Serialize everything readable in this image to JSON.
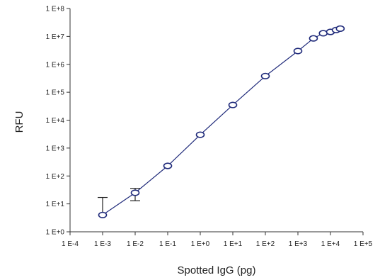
{
  "chart_data": {
    "type": "scatter",
    "title": "",
    "xlabel": "Spotted IgG (pg)",
    "ylabel": "RFU",
    "x_scale": "log",
    "y_scale": "log",
    "xlim": [
      0.0001,
      100000
    ],
    "ylim": [
      1,
      100000000
    ],
    "x_tick_values": [
      0.0001,
      0.001,
      0.01,
      0.1,
      1,
      10,
      100,
      1000,
      10000,
      100000
    ],
    "x_tick_labels": [
      "1 E-4",
      "1 E-3",
      "1 E-2",
      "1 E-1",
      "1 E+0",
      "1 E+1",
      "1 E+2",
      "1 E+3",
      "1 E+4",
      "1 E+5"
    ],
    "y_tick_values": [
      1,
      10,
      100,
      1000,
      10000,
      100000,
      1000000,
      10000000,
      100000000
    ],
    "y_tick_labels": [
      "1 E+0",
      "1 E+1",
      "1 E+2",
      "1 E+3",
      "1 E+4",
      "1 E+5",
      "1 E+6",
      "1 E+7",
      "1 E+8"
    ],
    "grid": false,
    "legend": "none",
    "color": "#1f2a7a",
    "series": [
      {
        "x": [
          0.001,
          0.01,
          0.1,
          1,
          10,
          100,
          1000,
          3000,
          6000,
          10000,
          15000,
          20000
        ],
        "y": [
          4,
          25,
          230,
          3000,
          35000,
          380000,
          3000000,
          8500000,
          13000000,
          14500000,
          17000000,
          19000000
        ],
        "y_err_low": [
          0,
          13,
          0,
          0,
          0,
          0,
          0,
          0,
          0,
          0,
          0,
          0
        ],
        "y_err_high": [
          17,
          36,
          0,
          0,
          0,
          0,
          0,
          0,
          0,
          0,
          0,
          0
        ]
      }
    ]
  }
}
